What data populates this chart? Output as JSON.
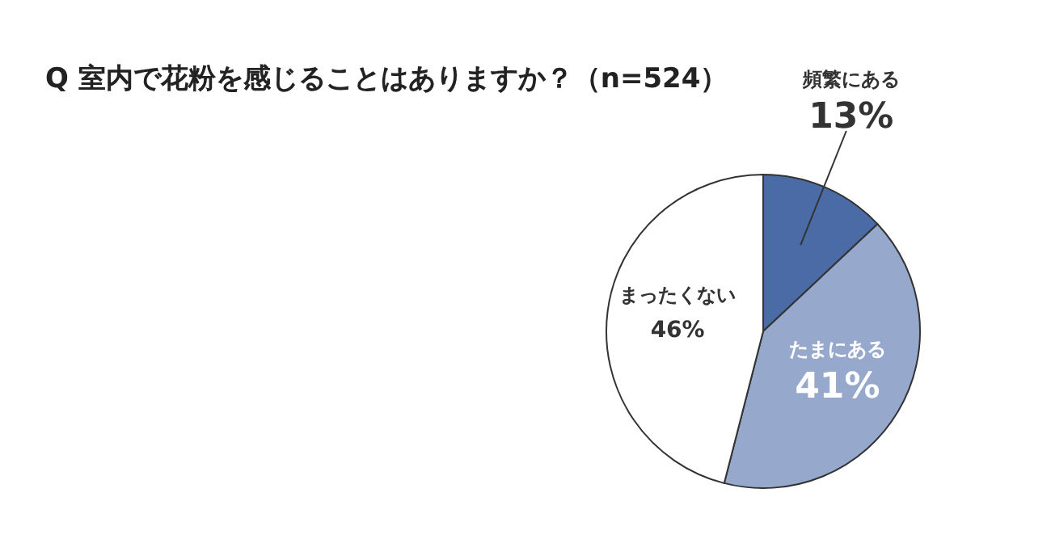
{
  "chart_data": {
    "type": "pie",
    "title": "Q 室内で花粉を感じることはありますか？（n=524）",
    "categories": [
      "頻繁にある",
      "たまにある",
      "まったくない"
    ],
    "values": [
      13,
      41,
      46
    ],
    "colors": [
      "#4a6ba6",
      "#96a9cd",
      "#ffffff"
    ],
    "value_labels": [
      "13%",
      "41%",
      "46%"
    ]
  }
}
